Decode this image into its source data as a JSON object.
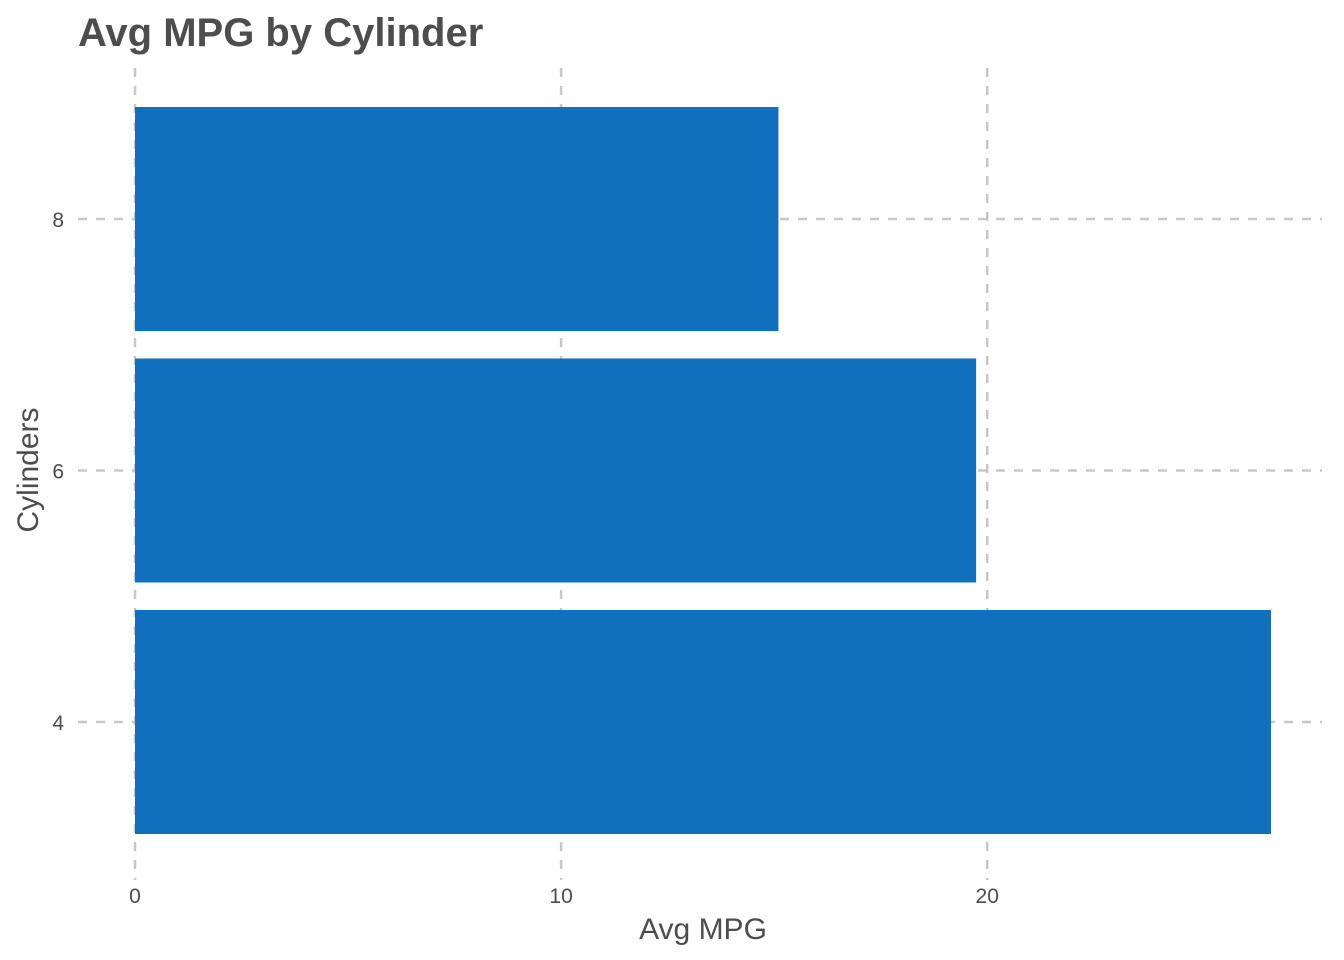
{
  "chart_data": {
    "type": "bar",
    "orientation": "horizontal",
    "title": "Avg MPG by Cylinder",
    "xlabel": "Avg MPG",
    "ylabel": "Cylinders",
    "categories": [
      "4",
      "6",
      "8"
    ],
    "values": [
      26.66,
      19.74,
      15.1
    ],
    "xlim": [
      0,
      26.66
    ],
    "xticks": [
      0,
      10,
      20
    ],
    "grid": true,
    "legend": "none",
    "bar_color": "#1170be",
    "grid_color": "#c8c8c8"
  }
}
